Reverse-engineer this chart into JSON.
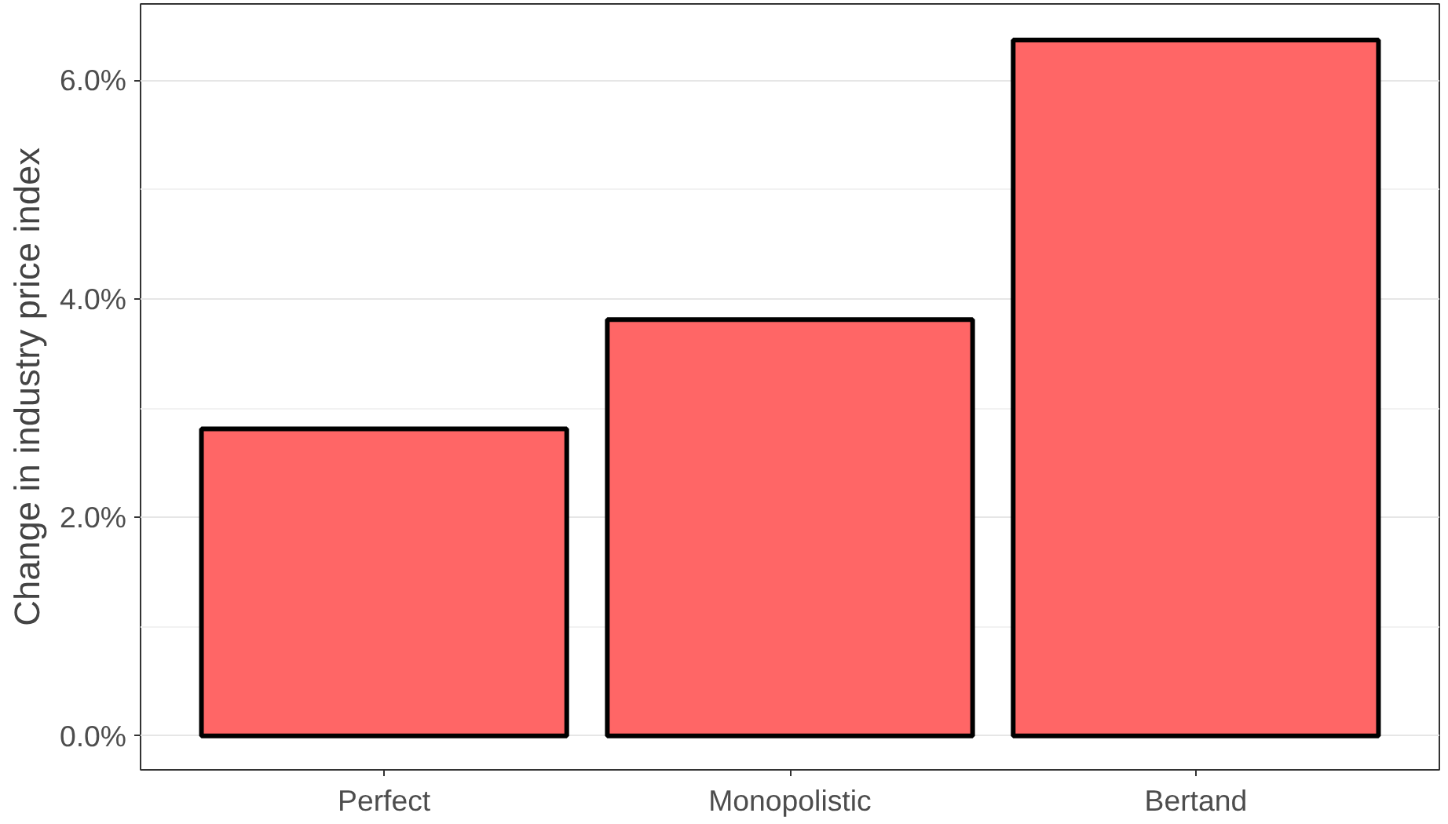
{
  "chart_data": {
    "type": "bar",
    "ylabel": "Change in industry price index",
    "categories": [
      "Perfect",
      "Monopolistic",
      "Bertand"
    ],
    "values": [
      2.81,
      3.81,
      6.37
    ],
    "color": "#ff6666",
    "ylim": [
      -0.31,
      6.7
    ],
    "yticks": [
      {
        "value": 0,
        "label": "0.0%"
      },
      {
        "value": 2,
        "label": "2.0%"
      },
      {
        "value": 4,
        "label": "4.0%"
      },
      {
        "value": 6,
        "label": "6.0%"
      }
    ],
    "grid": "y"
  }
}
